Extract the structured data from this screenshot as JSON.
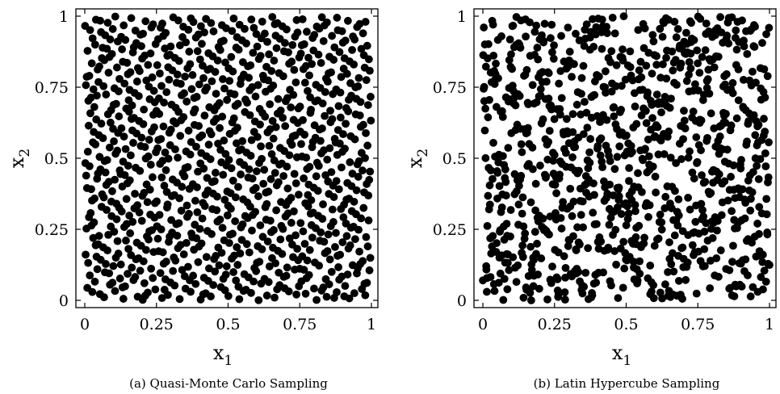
{
  "chart_data": [
    {
      "type": "scatter",
      "caption": "(a) Quasi-Monte Carlo Sampling",
      "xlabel": "x",
      "xlabel_sub": "1",
      "ylabel": "x",
      "ylabel_sub": "2",
      "xlim": [
        0,
        1
      ],
      "ylim": [
        0,
        1
      ],
      "xticks": [
        0,
        0.25,
        0.5,
        0.75,
        1
      ],
      "xtick_labels": [
        "0",
        "0.25",
        "0.5",
        "0.75",
        "1"
      ],
      "yticks": [
        0,
        0.25,
        0.5,
        0.75,
        1
      ],
      "ytick_labels": [
        "0",
        "0.25",
        "0.5",
        "0.75",
        "1"
      ],
      "grid": false,
      "marker_color": "#000000",
      "sampler": "halton-base-2-3",
      "n_points": 1000
    },
    {
      "type": "scatter",
      "caption": "(b) Latin Hypercube Sampling",
      "xlabel": "x",
      "xlabel_sub": "1",
      "ylabel": "x",
      "ylabel_sub": "2",
      "xlim": [
        0,
        1
      ],
      "ylim": [
        0,
        1
      ],
      "xticks": [
        0,
        0.25,
        0.5,
        0.75,
        1
      ],
      "xtick_labels": [
        "0",
        "0.25",
        "0.5",
        "0.75",
        "1"
      ],
      "yticks": [
        0,
        0.25,
        0.5,
        0.75,
        1
      ],
      "ytick_labels": [
        "0",
        "0.25",
        "0.5",
        "0.75",
        "1"
      ],
      "grid": false,
      "marker_color": "#000000",
      "sampler": "latin-hypercube",
      "n_points": 1000
    }
  ]
}
